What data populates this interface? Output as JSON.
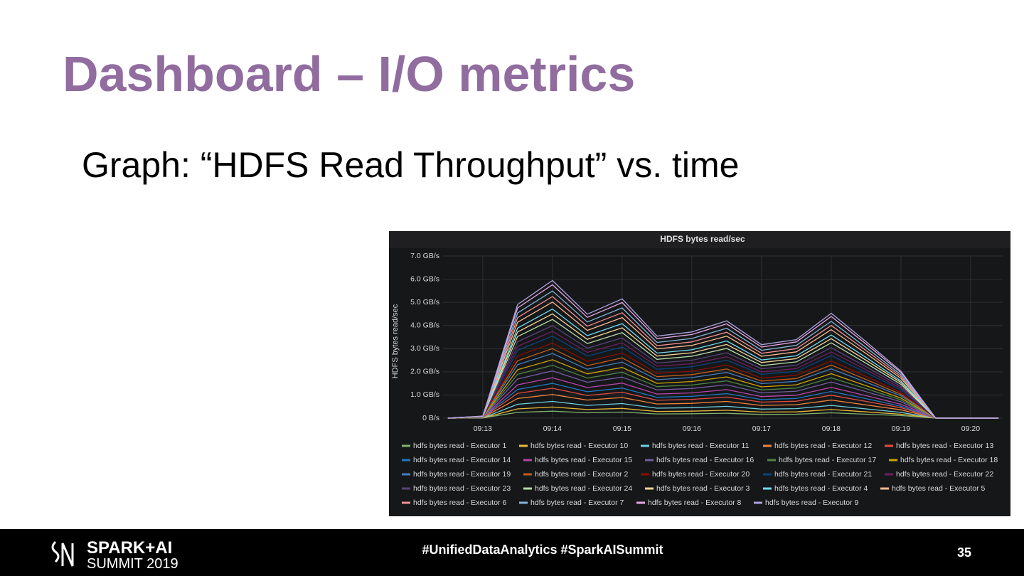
{
  "slide": {
    "title": "Dashboard – I/O metrics",
    "subtitle": "Graph: “HDFS Read Throughput” vs. time",
    "logo_top": "SPARK+AI",
    "logo_bottom": "SUMMIT 2019",
    "hashtags": "#UnifiedDataAnalytics #SparkAISummit",
    "page_number": "35"
  },
  "chart_data": {
    "type": "stacked-line",
    "title": "HDFS bytes read/sec",
    "ylabel": "HDFS bytes read/sec",
    "grid": true,
    "x": [
      12.5,
      13.0,
      13.5,
      14.0,
      14.5,
      15.0,
      15.5,
      16.0,
      16.5,
      17.0,
      17.5,
      18.0,
      18.5,
      19.0,
      19.5,
      20.0,
      20.4
    ],
    "xlim": [
      12.43,
      20.46
    ],
    "xticks": [
      {
        "value": 13,
        "label": "09:13"
      },
      {
        "value": 14,
        "label": "09:14"
      },
      {
        "value": 15,
        "label": "09:15"
      },
      {
        "value": 16,
        "label": "09:16"
      },
      {
        "value": 17,
        "label": "09:17"
      },
      {
        "value": 18,
        "label": "09:18"
      },
      {
        "value": 19,
        "label": "09:19"
      },
      {
        "value": 20,
        "label": "09:20"
      }
    ],
    "ylim": [
      0,
      7
    ],
    "yticks": [
      {
        "value": 0,
        "label": "0 B/s"
      },
      {
        "value": 1,
        "label": "1.0 GB/s"
      },
      {
        "value": 2,
        "label": "2.0 GB/s"
      },
      {
        "value": 3,
        "label": "3.0 GB/s"
      },
      {
        "value": 4,
        "label": "4.0 GB/s"
      },
      {
        "value": 5,
        "label": "5.0 GB/s"
      },
      {
        "value": 6,
        "label": "6.0 GB/s"
      },
      {
        "value": 7,
        "label": "7.0 GB/s"
      }
    ],
    "series": [
      {
        "name": "hdfs bytes read - Executor 1",
        "color": "#7EB26D",
        "values": [
          0,
          0.01,
          0.25,
          0.3,
          0.23,
          0.26,
          0.18,
          0.19,
          0.21,
          0.16,
          0.17,
          0.23,
          0.17,
          0.11,
          0,
          0,
          0
        ]
      },
      {
        "name": "hdfs bytes read - Executor 10",
        "color": "#EAB839",
        "values": [
          0,
          0,
          0.15,
          0.18,
          0.14,
          0.16,
          0.11,
          0.11,
          0.13,
          0.1,
          0.1,
          0.14,
          0.1,
          0.06,
          0,
          0,
          0
        ]
      },
      {
        "name": "hdfs bytes read - Executor 11",
        "color": "#6ED0E0",
        "values": [
          0,
          0,
          0.2,
          0.24,
          0.18,
          0.21,
          0.14,
          0.15,
          0.17,
          0.13,
          0.14,
          0.18,
          0.13,
          0.08,
          0,
          0,
          0
        ]
      },
      {
        "name": "hdfs bytes read - Executor 12",
        "color": "#EF843C",
        "values": [
          0,
          0.01,
          0.25,
          0.3,
          0.23,
          0.26,
          0.18,
          0.19,
          0.21,
          0.16,
          0.17,
          0.23,
          0.17,
          0.11,
          0,
          0,
          0
        ]
      },
      {
        "name": "hdfs bytes read - Executor 13",
        "color": "#E24D42",
        "values": [
          0,
          0.01,
          0.22,
          0.27,
          0.2,
          0.23,
          0.16,
          0.17,
          0.19,
          0.14,
          0.15,
          0.21,
          0.15,
          0.09,
          0,
          0,
          0
        ]
      },
      {
        "name": "hdfs bytes read - Executor 14",
        "color": "#1F78C1",
        "values": [
          0,
          0,
          0.17,
          0.21,
          0.16,
          0.18,
          0.13,
          0.13,
          0.15,
          0.11,
          0.12,
          0.16,
          0.12,
          0.07,
          0,
          0,
          0
        ]
      },
      {
        "name": "hdfs bytes read - Executor 15",
        "color": "#BA43A9",
        "values": [
          0,
          0,
          0.2,
          0.24,
          0.18,
          0.21,
          0.14,
          0.15,
          0.17,
          0.13,
          0.14,
          0.18,
          0.13,
          0.08,
          0,
          0,
          0
        ]
      },
      {
        "name": "hdfs bytes read - Executor 16",
        "color": "#705DA0",
        "values": [
          0,
          0.01,
          0.25,
          0.3,
          0.23,
          0.26,
          0.18,
          0.19,
          0.21,
          0.16,
          0.17,
          0.23,
          0.17,
          0.11,
          0,
          0,
          0
        ]
      },
      {
        "name": "hdfs bytes read - Executor 17",
        "color": "#508642",
        "values": [
          0,
          0,
          0.2,
          0.24,
          0.18,
          0.21,
          0.14,
          0.15,
          0.17,
          0.13,
          0.14,
          0.18,
          0.13,
          0.08,
          0,
          0,
          0
        ]
      },
      {
        "name": "hdfs bytes read - Executor 18",
        "color": "#CCA300",
        "values": [
          0,
          0,
          0.2,
          0.24,
          0.18,
          0.21,
          0.14,
          0.15,
          0.17,
          0.13,
          0.14,
          0.18,
          0.13,
          0.08,
          0,
          0,
          0
        ]
      },
      {
        "name": "hdfs bytes read - Executor 19",
        "color": "#447EBC",
        "values": [
          0,
          0.01,
          0.22,
          0.27,
          0.2,
          0.23,
          0.16,
          0.17,
          0.19,
          0.14,
          0.15,
          0.21,
          0.15,
          0.09,
          0,
          0,
          0
        ]
      },
      {
        "name": "hdfs bytes read - Executor 2",
        "color": "#C15C17",
        "values": [
          0,
          0,
          0.17,
          0.21,
          0.16,
          0.18,
          0.13,
          0.13,
          0.15,
          0.11,
          0.12,
          0.16,
          0.12,
          0.07,
          0,
          0,
          0
        ]
      },
      {
        "name": "hdfs bytes read - Executor 20",
        "color": "#890F02",
        "values": [
          0,
          0,
          0.2,
          0.24,
          0.18,
          0.21,
          0.14,
          0.15,
          0.17,
          0.13,
          0.14,
          0.18,
          0.13,
          0.08,
          0,
          0,
          0
        ]
      },
      {
        "name": "hdfs bytes read - Executor 21",
        "color": "#0A437C",
        "values": [
          0,
          0.01,
          0.25,
          0.3,
          0.23,
          0.26,
          0.18,
          0.19,
          0.21,
          0.16,
          0.17,
          0.23,
          0.17,
          0.11,
          0,
          0,
          0
        ]
      },
      {
        "name": "hdfs bytes read - Executor 22",
        "color": "#6D1F62",
        "values": [
          0,
          0,
          0.17,
          0.21,
          0.16,
          0.18,
          0.13,
          0.13,
          0.15,
          0.11,
          0.12,
          0.16,
          0.12,
          0.07,
          0,
          0,
          0
        ]
      },
      {
        "name": "hdfs bytes read - Executor 23",
        "color": "#584477",
        "values": [
          0,
          0,
          0.2,
          0.24,
          0.18,
          0.21,
          0.14,
          0.15,
          0.17,
          0.13,
          0.14,
          0.18,
          0.13,
          0.08,
          0,
          0,
          0
        ]
      },
      {
        "name": "hdfs bytes read - Executor 24",
        "color": "#B7DBAB",
        "values": [
          0,
          0.01,
          0.22,
          0.27,
          0.2,
          0.23,
          0.16,
          0.17,
          0.19,
          0.14,
          0.15,
          0.21,
          0.15,
          0.09,
          0,
          0,
          0
        ]
      },
      {
        "name": "hdfs bytes read - Executor 3",
        "color": "#F4D598",
        "values": [
          0,
          0,
          0.2,
          0.24,
          0.18,
          0.21,
          0.14,
          0.15,
          0.17,
          0.13,
          0.14,
          0.18,
          0.13,
          0.08,
          0,
          0,
          0
        ]
      },
      {
        "name": "hdfs bytes read - Executor 4",
        "color": "#70DBED",
        "values": [
          0,
          0,
          0.17,
          0.21,
          0.16,
          0.18,
          0.13,
          0.13,
          0.15,
          0.11,
          0.12,
          0.16,
          0.12,
          0.07,
          0,
          0,
          0
        ]
      },
      {
        "name": "hdfs bytes read - Executor 5",
        "color": "#F9BA8F",
        "values": [
          0,
          0.01,
          0.25,
          0.3,
          0.23,
          0.26,
          0.18,
          0.19,
          0.21,
          0.16,
          0.17,
          0.23,
          0.17,
          0.11,
          0,
          0,
          0
        ]
      },
      {
        "name": "hdfs bytes read - Executor 6",
        "color": "#F29191",
        "values": [
          0,
          0,
          0.2,
          0.24,
          0.18,
          0.21,
          0.14,
          0.15,
          0.17,
          0.13,
          0.14,
          0.18,
          0.13,
          0.08,
          0,
          0,
          0
        ]
      },
      {
        "name": "hdfs bytes read - Executor 7",
        "color": "#82B5D8",
        "values": [
          0,
          0,
          0.2,
          0.24,
          0.18,
          0.21,
          0.14,
          0.15,
          0.17,
          0.13,
          0.14,
          0.18,
          0.13,
          0.08,
          0,
          0,
          0
        ]
      },
      {
        "name": "hdfs bytes read - Executor 8",
        "color": "#E5A8E2",
        "values": [
          0,
          0.01,
          0.22,
          0.27,
          0.2,
          0.23,
          0.16,
          0.17,
          0.19,
          0.14,
          0.15,
          0.21,
          0.15,
          0.09,
          0,
          0,
          0
        ]
      },
      {
        "name": "hdfs bytes read - Executor 9",
        "color": "#AEA2E0",
        "values": [
          0,
          0,
          0.15,
          0.18,
          0.14,
          0.16,
          0.11,
          0.11,
          0.13,
          0.1,
          0.1,
          0.14,
          0.1,
          0.06,
          0,
          0,
          0
        ]
      }
    ]
  }
}
